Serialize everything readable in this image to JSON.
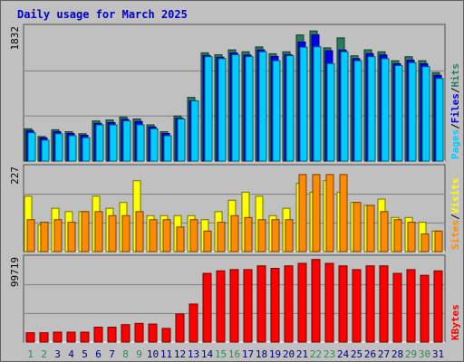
{
  "chart_data": [
    {
      "type": "bar",
      "title": "Daily usage for March 2025",
      "categories": [
        "1",
        "2",
        "3",
        "4",
        "5",
        "6",
        "7",
        "8",
        "9",
        "10",
        "11",
        "12",
        "13",
        "14",
        "15",
        "16",
        "17",
        "18",
        "19",
        "20",
        "21",
        "22",
        "23",
        "24",
        "25",
        "26",
        "27",
        "28",
        "29",
        "30",
        "31"
      ],
      "weekend_days": [
        "1",
        "2",
        "8",
        "9",
        "15",
        "16",
        "22",
        "23",
        "29",
        "30"
      ],
      "ymax_label": "1832",
      "ymax": 1832,
      "legend": [
        "Hits",
        "Files",
        "Pages"
      ],
      "series": [
        {
          "name": "Hits",
          "color": "#2b7c5e",
          "values": [
            445,
            338,
            431,
            404,
            377,
            553,
            566,
            607,
            580,
            499,
            404,
            621,
            877,
            1491,
            1464,
            1532,
            1505,
            1572,
            1478,
            1505,
            1737,
            1792,
            1559,
            1697,
            1450,
            1532,
            1505,
            1382,
            1437,
            1382,
            1218
          ]
        },
        {
          "name": "Files",
          "color": "#0000ee",
          "values": [
            420,
            320,
            405,
            380,
            355,
            520,
            530,
            575,
            545,
            470,
            380,
            590,
            830,
            1455,
            1430,
            1490,
            1460,
            1530,
            1440,
            1465,
            1640,
            1740,
            1520,
            1530,
            1410,
            1480,
            1460,
            1340,
            1390,
            1340,
            1180
          ]
        },
        {
          "name": "Pages",
          "color": "#00ccff",
          "values": [
            390,
            288,
            376,
            349,
            322,
            499,
            499,
            553,
            499,
            445,
            349,
            580,
            829,
            1437,
            1410,
            1464,
            1437,
            1505,
            1382,
            1451,
            1568,
            1574,
            1342,
            1505,
            1382,
            1437,
            1410,
            1314,
            1355,
            1300,
            1137
          ]
        }
      ]
    },
    {
      "type": "bar",
      "ymax_label": "227",
      "ymax": 227,
      "legend": [
        "Visits",
        "Sites"
      ],
      "series": [
        {
          "name": "Visits",
          "color": "#ffff00",
          "values": [
            151,
            73,
            118,
            109,
            109,
            151,
            118,
            134,
            193,
            98,
            98,
            98,
            98,
            87,
            109,
            140,
            162,
            151,
            98,
            118,
            186,
            162,
            193,
            162,
            134,
            126,
            143,
            93,
            93,
            80,
            56
          ]
        },
        {
          "name": "Sites",
          "color": "#ff8c00",
          "values": [
            87,
            80,
            87,
            80,
            109,
            109,
            98,
            98,
            109,
            87,
            87,
            67,
            87,
            56,
            80,
            98,
            93,
            87,
            87,
            87,
            210,
            210,
            210,
            210,
            134,
            126,
            109,
            87,
            80,
            48,
            56
          ]
        }
      ]
    },
    {
      "type": "bar",
      "ymax_label": "99719",
      "ymax": 99719,
      "legend": [
        "KBytes"
      ],
      "series": [
        {
          "name": "KBytes",
          "color": "#ff0000",
          "values": [
            11200,
            11200,
            11900,
            11900,
            11900,
            17900,
            17900,
            20900,
            22400,
            21600,
            16400,
            33600,
            45600,
            82300,
            85300,
            86800,
            86800,
            91300,
            88300,
            91300,
            94300,
            99000,
            94300,
            91300,
            86800,
            91300,
            91300,
            82300,
            86800,
            80000,
            85300
          ]
        }
      ]
    }
  ],
  "colors": {
    "background": "#c0c0c0",
    "title": "#0000cc",
    "weekday_label": "#000080",
    "weekend_label": "#2e8b57"
  }
}
